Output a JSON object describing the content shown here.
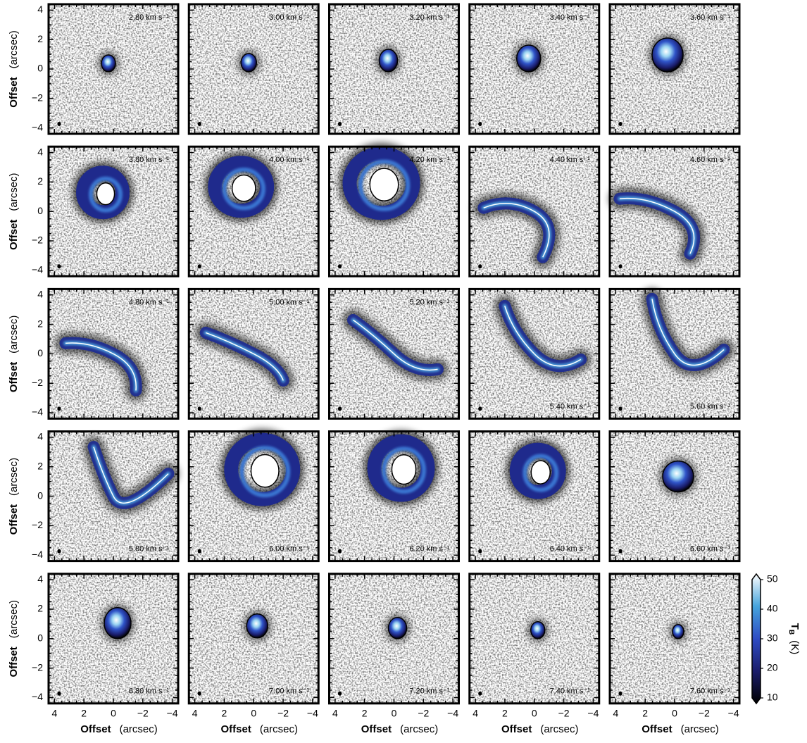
{
  "chart_data": {
    "type": "channel_map",
    "panels": [
      {
        "label": "2.80 km s⁻¹",
        "label_corner": "upper right"
      },
      {
        "label": "3.00 km s⁻¹",
        "label_corner": "upper right"
      },
      {
        "label": "3.20 km s⁻¹",
        "label_corner": "upper right"
      },
      {
        "label": "3.40 km s⁻¹",
        "label_corner": "upper right"
      },
      {
        "label": "3.60 km s⁻¹",
        "label_corner": "upper right"
      },
      {
        "label": "3.80 km s⁻¹",
        "label_corner": "upper right"
      },
      {
        "label": "4.00 km s⁻¹",
        "label_corner": "upper right"
      },
      {
        "label": "4.20 km s⁻¹",
        "label_corner": "upper right"
      },
      {
        "label": "4.40 km s⁻¹",
        "label_corner": "upper right"
      },
      {
        "label": "4.60 km s⁻¹",
        "label_corner": "upper right"
      },
      {
        "label": "4.80 km s⁻¹",
        "label_corner": "upper right"
      },
      {
        "label": "5.00 km s⁻¹",
        "label_corner": "upper right"
      },
      {
        "label": "5.20 km s⁻¹",
        "label_corner": "upper right"
      },
      {
        "label": "5.40 km s⁻¹",
        "label_corner": "lower right"
      },
      {
        "label": "5.60 km s⁻¹",
        "label_corner": "lower right"
      },
      {
        "label": "5.80 km s⁻¹",
        "label_corner": "lower right"
      },
      {
        "label": "6.00 km s⁻¹",
        "label_corner": "lower right"
      },
      {
        "label": "6.20 km s⁻¹",
        "label_corner": "lower right"
      },
      {
        "label": "6.40 km s⁻¹",
        "label_corner": "lower right"
      },
      {
        "label": "6.60 km s⁻¹",
        "label_corner": "lower right"
      },
      {
        "label": "6.80 km s⁻¹",
        "label_corner": "lower right"
      },
      {
        "label": "7.00 km s⁻¹",
        "label_corner": "lower right"
      },
      {
        "label": "7.20 km s⁻¹",
        "label_corner": "lower right"
      },
      {
        "label": "7.40 km s⁻¹",
        "label_corner": "lower right"
      },
      {
        "label": "7.60 km s⁻¹",
        "label_corner": "lower right"
      }
    ],
    "xlabel": {
      "name": "Offset",
      "unit": "(arcsec)"
    },
    "ylabel": {
      "name": "Offset",
      "unit": "(arcsec)"
    },
    "xlim": [
      4.4,
      -4.4
    ],
    "ylim": [
      -4.4,
      4.4
    ],
    "xticks": [
      4,
      2,
      0,
      {
        "value": -2,
        "label": "−2"
      },
      {
        "value": -4,
        "label": "−4"
      }
    ],
    "yticks": [
      {
        "value": -4,
        "label": "−4"
      },
      {
        "value": -2,
        "label": "−2"
      },
      0,
      2,
      4
    ],
    "colorbar": {
      "symbol": "T",
      "subscript": "B",
      "unit": "(K)",
      "lim": [
        10,
        50
      ],
      "ticks": [
        10,
        20,
        30,
        40,
        50
      ],
      "colormap": [
        "#000000",
        "#1b1d6b",
        "#2e4cc4",
        "#46a4dc",
        "#ffffff"
      ]
    }
  }
}
